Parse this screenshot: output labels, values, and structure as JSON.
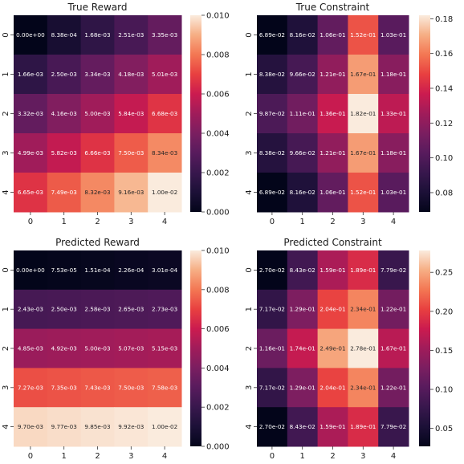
{
  "chart_data": [
    {
      "type": "heatmap",
      "title": "True Reward",
      "x_ticks": [
        "0",
        "1",
        "2",
        "3",
        "4"
      ],
      "y_ticks": [
        "0",
        "1",
        "2",
        "3",
        "4"
      ],
      "values": [
        [
          0.0,
          0.000838,
          0.00168,
          0.00251,
          0.00335
        ],
        [
          0.00166,
          0.0025,
          0.00334,
          0.00418,
          0.00501
        ],
        [
          0.00332,
          0.00416,
          0.005,
          0.00584,
          0.00668
        ],
        [
          0.00499,
          0.00582,
          0.00666,
          0.0075,
          0.00834
        ],
        [
          0.00665,
          0.00749,
          0.00832,
          0.00916,
          0.01
        ]
      ],
      "labels": [
        [
          "0.00e+00",
          "8.38e-04",
          "1.68e-03",
          "2.51e-03",
          "3.35e-03"
        ],
        [
          "1.66e-03",
          "2.50e-03",
          "3.34e-03",
          "4.18e-03",
          "5.01e-03"
        ],
        [
          "3.32e-03",
          "4.16e-03",
          "5.00e-03",
          "5.84e-03",
          "6.68e-03"
        ],
        [
          "4.99e-03",
          "5.82e-03",
          "6.66e-03",
          "7.50e-03",
          "8.34e-03"
        ],
        [
          "6.65e-03",
          "7.49e-03",
          "8.32e-03",
          "9.16e-03",
          "1.00e-02"
        ]
      ],
      "colorbar": {
        "range": [
          0.0,
          0.01
        ],
        "ticks": [
          0.0,
          0.002,
          0.004,
          0.006,
          0.008,
          0.01
        ],
        "tick_labels": [
          "0.000",
          "0.002",
          "0.004",
          "0.006",
          "0.008",
          "0.010"
        ]
      },
      "colormap": "rocket"
    },
    {
      "type": "heatmap",
      "title": "True Constraint",
      "x_ticks": [
        "0",
        "1",
        "2",
        "3",
        "4"
      ],
      "y_ticks": [
        "0",
        "1",
        "2",
        "3",
        "4"
      ],
      "values": [
        [
          0.0689,
          0.0816,
          0.106,
          0.152,
          0.103
        ],
        [
          0.0838,
          0.0966,
          0.121,
          0.167,
          0.118
        ],
        [
          0.0987,
          0.111,
          0.136,
          0.182,
          0.133
        ],
        [
          0.0838,
          0.0966,
          0.121,
          0.167,
          0.118
        ],
        [
          0.0689,
          0.0816,
          0.106,
          0.152,
          0.103
        ]
      ],
      "labels": [
        [
          "6.89e-02",
          "8.16e-02",
          "1.06e-01",
          "1.52e-01",
          "1.03e-01"
        ],
        [
          "8.38e-02",
          "9.66e-02",
          "1.21e-01",
          "1.67e-01",
          "1.18e-01"
        ],
        [
          "9.87e-02",
          "1.11e-01",
          "1.36e-01",
          "1.82e-01",
          "1.33e-01"
        ],
        [
          "8.38e-02",
          "9.66e-02",
          "1.21e-01",
          "1.67e-01",
          "1.18e-01"
        ],
        [
          "6.89e-02",
          "8.16e-02",
          "1.06e-01",
          "1.52e-01",
          "1.03e-01"
        ]
      ],
      "colorbar": {
        "range": [
          0.0689,
          0.182
        ],
        "ticks": [
          0.08,
          0.1,
          0.12,
          0.14,
          0.16,
          0.18
        ],
        "tick_labels": [
          "0.08",
          "0.10",
          "0.12",
          "0.14",
          "0.16",
          "0.18"
        ]
      },
      "colormap": "rocket"
    },
    {
      "type": "heatmap",
      "title": "Predicted Reward",
      "x_ticks": [
        "0",
        "1",
        "2",
        "3",
        "4"
      ],
      "y_ticks": [
        "0",
        "1",
        "2",
        "3",
        "4"
      ],
      "values": [
        [
          0.0,
          7.53e-05,
          0.000151,
          0.000226,
          0.000301
        ],
        [
          0.00243,
          0.0025,
          0.00258,
          0.00265,
          0.00273
        ],
        [
          0.00485,
          0.00492,
          0.005,
          0.00507,
          0.00515
        ],
        [
          0.00727,
          0.00735,
          0.00743,
          0.0075,
          0.00758
        ],
        [
          0.0097,
          0.00977,
          0.00985,
          0.00992,
          0.01
        ]
      ],
      "labels": [
        [
          "0.00e+00",
          "7.53e-05",
          "1.51e-04",
          "2.26e-04",
          "3.01e-04"
        ],
        [
          "2.43e-03",
          "2.50e-03",
          "2.58e-03",
          "2.65e-03",
          "2.73e-03"
        ],
        [
          "4.85e-03",
          "4.92e-03",
          "5.00e-03",
          "5.07e-03",
          "5.15e-03"
        ],
        [
          "7.27e-03",
          "7.35e-03",
          "7.43e-03",
          "7.50e-03",
          "7.58e-03"
        ],
        [
          "9.70e-03",
          "9.77e-03",
          "9.85e-03",
          "9.92e-03",
          "1.00e-02"
        ]
      ],
      "colorbar": {
        "range": [
          0.0,
          0.01
        ],
        "ticks": [
          0.0,
          0.002,
          0.004,
          0.006,
          0.008,
          0.01
        ],
        "tick_labels": [
          "0.000",
          "0.002",
          "0.004",
          "0.006",
          "0.008",
          "0.010"
        ]
      },
      "colormap": "rocket"
    },
    {
      "type": "heatmap",
      "title": "Predicted Constraint",
      "x_ticks": [
        "0",
        "1",
        "2",
        "3",
        "4"
      ],
      "y_ticks": [
        "0",
        "1",
        "2",
        "3",
        "4"
      ],
      "values": [
        [
          0.027,
          0.0843,
          0.159,
          0.189,
          0.0779
        ],
        [
          0.0717,
          0.129,
          0.204,
          0.234,
          0.122
        ],
        [
          0.116,
          0.174,
          0.249,
          0.278,
          0.167
        ],
        [
          0.0717,
          0.129,
          0.204,
          0.234,
          0.122
        ],
        [
          0.027,
          0.0843,
          0.159,
          0.189,
          0.0779
        ]
      ],
      "labels": [
        [
          "2.70e-02",
          "8.43e-02",
          "1.59e-01",
          "1.89e-01",
          "7.79e-02"
        ],
        [
          "7.17e-02",
          "1.29e-01",
          "2.04e-01",
          "2.34e-01",
          "1.22e-01"
        ],
        [
          "1.16e-01",
          "1.74e-01",
          "2.49e-01",
          "2.78e-01",
          "1.67e-01"
        ],
        [
          "7.17e-02",
          "1.29e-01",
          "2.04e-01",
          "2.34e-01",
          "1.22e-01"
        ],
        [
          "2.70e-02",
          "8.43e-02",
          "1.59e-01",
          "1.89e-01",
          "7.79e-02"
        ]
      ],
      "colorbar": {
        "range": [
          0.027,
          0.278
        ],
        "ticks": [
          0.05,
          0.1,
          0.15,
          0.2,
          0.25
        ],
        "tick_labels": [
          "0.05",
          "0.10",
          "0.15",
          "0.20",
          "0.25"
        ]
      },
      "colormap": "rocket"
    }
  ]
}
